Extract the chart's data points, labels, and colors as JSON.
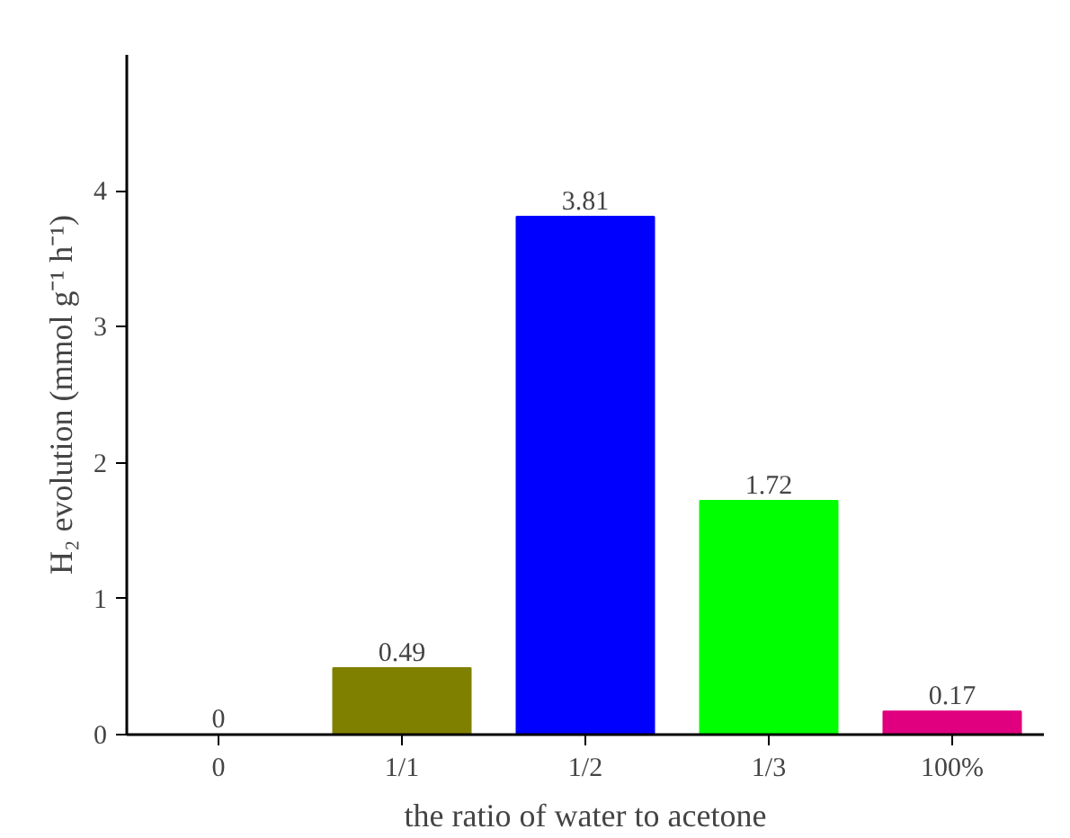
{
  "chart_data": {
    "type": "bar",
    "xlabel": "the ratio of water to acetone",
    "ylabel": "H₂ evolution (mmol g⁻¹ h⁻¹)",
    "categories": [
      "0",
      "1/1",
      "1/2",
      "1/3",
      "100%"
    ],
    "values": [
      0,
      0.49,
      3.81,
      1.72,
      0.17
    ],
    "colors": [
      "#000000",
      "#808000",
      "#0000ff",
      "#00ff00",
      "#e0007f"
    ],
    "ylim": [
      0,
      5
    ],
    "yticks": [
      0,
      1,
      2,
      3,
      4
    ],
    "grid": false,
    "data_labels": true
  }
}
